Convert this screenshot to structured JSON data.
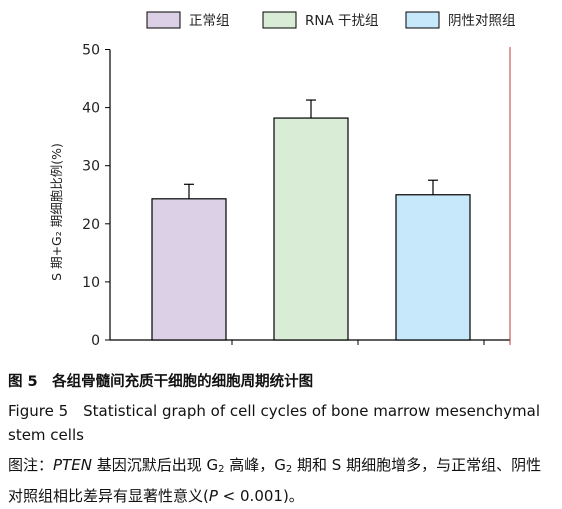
{
  "chart_data": {
    "type": "bar",
    "categories": [
      "正常组",
      "RNA 干扰组",
      "阴性对照组"
    ],
    "values": [
      24.3,
      38.2,
      25.0
    ],
    "errors": [
      2.5,
      3.1,
      2.5
    ],
    "colors": [
      "#dcd0e6",
      "#d8ecd6",
      "#c7e7fb"
    ],
    "legend": [
      "正常组",
      "RNA 干扰组",
      "阴性对照组"
    ],
    "legend_position": "top",
    "ylabel": "S 期+G₂ 期细胞比例(%)",
    "ylim": [
      0,
      50
    ],
    "yticks": [
      "0",
      "10",
      "20",
      "30",
      "40",
      "50"
    ],
    "grid": false
  },
  "caption": {
    "title_cn": "图 5　各组骨髓间充质干细胞的细胞周期统计图",
    "title_en": "Figure 5　Statistical graph of cell cycles of bone marrow mesenchymal stem cells",
    "note_prefix": "图注：",
    "note_gene": "PTEN",
    "note_part1": " 基因沉默后出现 G",
    "note_sub1": "2",
    "note_part2": " 高峰，G",
    "note_sub2": "2",
    "note_part3": " 期和 S 期细胞增多，与正常组、阴性对照组相比差异有显著性意义(",
    "note_p": "P",
    "note_part4": " < 0.001)。"
  }
}
